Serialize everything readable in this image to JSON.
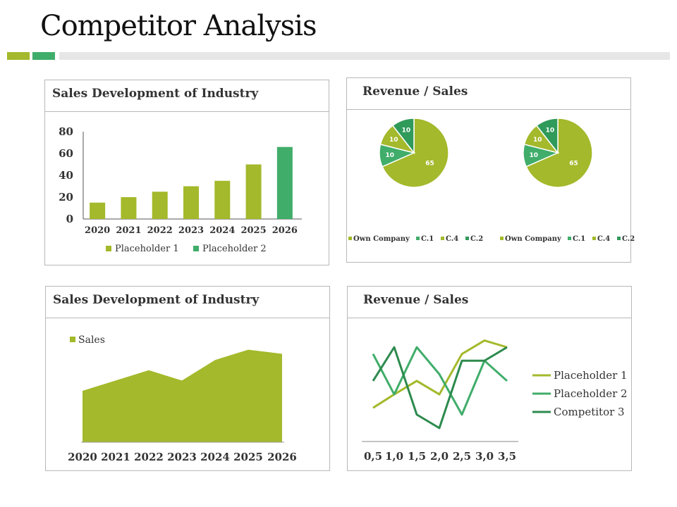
{
  "page": {
    "title": "Competitor Analysis"
  },
  "colors": {
    "light_green": "#a4b92b",
    "mid_green": "#40ad6a",
    "dark_green": "#2d8a4e",
    "pie_own": "#a4b92b",
    "pie_c1": "#40ad6a",
    "pie_c4": "#a4b92b",
    "pie_c2": "#2f9a5a",
    "bar_accent_1": "#a4b92b",
    "bar_accent_2": "#40ad6a",
    "bar_accent_3": "#e6e6e6"
  },
  "panels": {
    "bar": {
      "title": "Sales Development of Industry"
    },
    "pies": {
      "title": "Revenue / Sales"
    },
    "area": {
      "title": "Sales Development of Industry"
    },
    "lines": {
      "title": "Revenue / Sales"
    }
  },
  "chart_data": [
    {
      "type": "bar",
      "categories": [
        "2020",
        "2021",
        "2022",
        "2023",
        "2024",
        "2025",
        "2026"
      ],
      "series": [
        {
          "name": "Placeholder 1",
          "values": [
            15,
            20,
            25,
            30,
            35,
            50,
            null
          ]
        },
        {
          "name": "Placeholder 2",
          "values": [
            null,
            null,
            null,
            null,
            null,
            null,
            66
          ]
        }
      ],
      "ylim": [
        0,
        80
      ],
      "yticks": [
        0,
        20,
        40,
        60,
        80
      ],
      "legend": "bottom"
    },
    {
      "type": "pie",
      "labels": [
        "Own Company",
        "C.1",
        "C.4",
        "C.2"
      ],
      "values": [
        65,
        10,
        10,
        10
      ],
      "legend": "bottom"
    },
    {
      "type": "pie",
      "labels": [
        "Own Company",
        "C.1",
        "C.4",
        "C.2"
      ],
      "values": [
        65,
        10,
        10,
        10
      ],
      "legend": "bottom"
    },
    {
      "type": "area",
      "categories": [
        "2020",
        "2021",
        "2022",
        "2023",
        "2024",
        "2025",
        "2026"
      ],
      "series": [
        {
          "name": "Sales",
          "values": [
            25,
            30,
            35,
            30,
            40,
            45,
            43
          ]
        }
      ],
      "ylim": [
        0,
        50
      ],
      "legend": "top-left"
    },
    {
      "type": "line",
      "x": [
        "0,5",
        "1,0",
        "1,5",
        "2,0",
        "2,5",
        "3,0",
        "3,5"
      ],
      "series": [
        {
          "name": "Placeholder 1",
          "values": [
            2.5,
            3.5,
            4.5,
            3.5,
            6.5,
            7.5,
            7.0
          ]
        },
        {
          "name": "Placeholder 2",
          "values": [
            6.5,
            3.5,
            7.0,
            5.0,
            2.0,
            6.0,
            4.5
          ]
        },
        {
          "name": "Competitor 3",
          "values": [
            4.5,
            7.0,
            2.0,
            1.0,
            6.0,
            6.0,
            7.0
          ]
        }
      ],
      "ylim": [
        0,
        8
      ],
      "legend": "right"
    }
  ]
}
